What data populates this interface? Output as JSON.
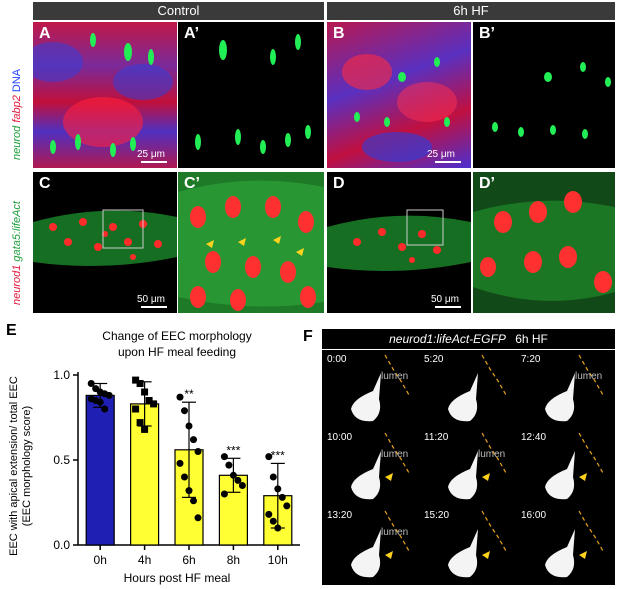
{
  "headers": {
    "control": "Control",
    "hf": "6h HF"
  },
  "row_top_labels": {
    "part1": "neurod",
    "part2": "fabp2",
    "part3": "DNA"
  },
  "row_bottom_labels": {
    "part1": "neurod1",
    "part2": "gata5:lifeAct"
  },
  "panels": {
    "A": "A",
    "A_prime": "A’",
    "B": "B",
    "B_prime": "B’",
    "C": "C",
    "C_prime": "C’",
    "D": "D",
    "D_prime": "D’",
    "E": "E",
    "F": "F"
  },
  "scalebars": {
    "top": "25 μm",
    "bottom": "50 μm"
  },
  "colors": {
    "control_bar": "#1f1fb4",
    "hf_bar": "#ffff33",
    "neurod": "#22ee55",
    "fabp2": "#ff2050",
    "dna": "#2040ff",
    "arrow": "#ffd21e",
    "lumen_line": "#e6a020"
  },
  "chart_data": {
    "type": "bar",
    "title": "Change of EEC morphology upon HF meal feeding",
    "title_line1": "Change of EEC morphology",
    "title_line2": "upon HF meal feeding",
    "xlabel": "Hours post HF meal",
    "ylabel_line1": "EEC with apical extension/ total EEC",
    "ylabel_line2": "(EEC morphology score)",
    "categories": [
      "0h",
      "4h",
      "6h",
      "8h",
      "10h"
    ],
    "values": [
      0.88,
      0.83,
      0.56,
      0.41,
      0.29
    ],
    "errors": [
      0.07,
      0.13,
      0.28,
      0.1,
      0.19
    ],
    "significance": [
      "",
      "",
      "**",
      "***",
      "***"
    ],
    "ylim": [
      0,
      1.0
    ],
    "yticks": [
      "0.0",
      "0.5",
      "1.0"
    ],
    "points": [
      [
        0.95,
        0.92,
        0.9,
        0.89,
        0.88,
        0.86,
        0.85,
        0.84,
        0.8
      ],
      [
        0.97,
        0.95,
        0.9,
        0.85,
        0.83,
        0.8,
        0.72,
        0.68
      ],
      [
        0.87,
        0.79,
        0.7,
        0.62,
        0.55,
        0.48,
        0.4,
        0.32,
        0.26,
        0.16
      ],
      [
        0.52,
        0.47,
        0.41,
        0.38,
        0.35,
        0.3
      ],
      [
        0.52,
        0.4,
        0.33,
        0.28,
        0.23,
        0.18,
        0.14,
        0.1
      ]
    ],
    "markers": [
      "circle",
      "square",
      "circle",
      "circle",
      "circle"
    ]
  },
  "timelapse": {
    "title_line_italic": "neurod1:lifeAct-EGFP",
    "title_line_plain": "6h HF",
    "lumen_label": "lumen",
    "frames": [
      {
        "time": "0:00",
        "lumen": true,
        "arrow": false
      },
      {
        "time": "5:20",
        "lumen": false,
        "arrow": false
      },
      {
        "time": "7:20",
        "lumen": true,
        "arrow": false
      },
      {
        "time": "10:00",
        "lumen": true,
        "arrow": true
      },
      {
        "time": "11:20",
        "lumen": true,
        "arrow": true
      },
      {
        "time": "12:40",
        "lumen": false,
        "arrow": true
      },
      {
        "time": "13:20",
        "lumen": true,
        "arrow": true
      },
      {
        "time": "15:20",
        "lumen": false,
        "arrow": true
      },
      {
        "time": "16:00",
        "lumen": false,
        "arrow": true
      }
    ]
  }
}
